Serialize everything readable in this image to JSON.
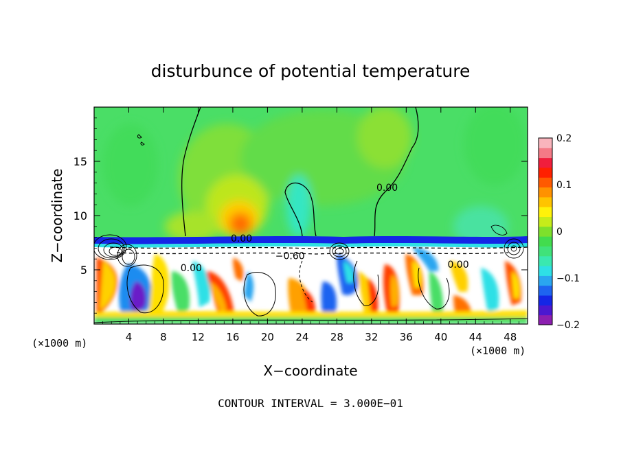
{
  "chart_data": {
    "type": "heatmap",
    "title": "disturbunce of potential temperature",
    "xlabel": "X−coordinate",
    "ylabel": "Z−coordinate",
    "x_unit_left": "(×1000 m)",
    "x_unit_right": "(×1000 m)",
    "xlim": [
      0,
      50
    ],
    "ylim": [
      0,
      20
    ],
    "x_ticks": [
      4,
      8,
      12,
      16,
      20,
      24,
      28,
      32,
      36,
      40,
      44,
      48
    ],
    "x_tick_labels": [
      "4",
      "8",
      "12",
      "16",
      "20",
      "24",
      "28",
      "32",
      "36",
      "40",
      "44",
      "48"
    ],
    "y_ticks": [
      5,
      10,
      15
    ],
    "y_tick_labels": [
      "5",
      "10",
      "15"
    ],
    "colorbar": {
      "range": [
        -0.2,
        0.2
      ],
      "ticks": [
        0.2,
        0.1,
        0,
        -0.1,
        -0.2
      ],
      "tick_labels": [
        "0.2",
        "0.1",
        "0",
        "−0.1",
        "−0.2"
      ],
      "colors": [
        "#8c1fb0",
        "#4b18d0",
        "#1426e6",
        "#1e64f0",
        "#2aa6f0",
        "#2ee0e6",
        "#3ae8b0",
        "#40e27a",
        "#42dc4e",
        "#7ee02c",
        "#c6ec1a",
        "#fff20a",
        "#ffc400",
        "#ff9200",
        "#ff5a00",
        "#ff2000",
        "#f01e3c",
        "#f47a86",
        "#f9b4bc"
      ]
    },
    "contour_labels": [
      {
        "text": "0.00",
        "x": 17.0,
        "z": 7.9
      },
      {
        "text": "0.00",
        "x": 33.8,
        "z": 12.6
      },
      {
        "text": "−0.60",
        "x": 22.6,
        "z": 6.3
      },
      {
        "text": "0.00",
        "x": 11.2,
        "z": 5.2
      },
      {
        "text": "0.00",
        "x": 42.0,
        "z": 5.5
      }
    ],
    "grid": false,
    "legend": "colorbar-right"
  },
  "footer": {
    "contour_interval": "CONTOUR INTERVAL = 3.000E−01"
  }
}
